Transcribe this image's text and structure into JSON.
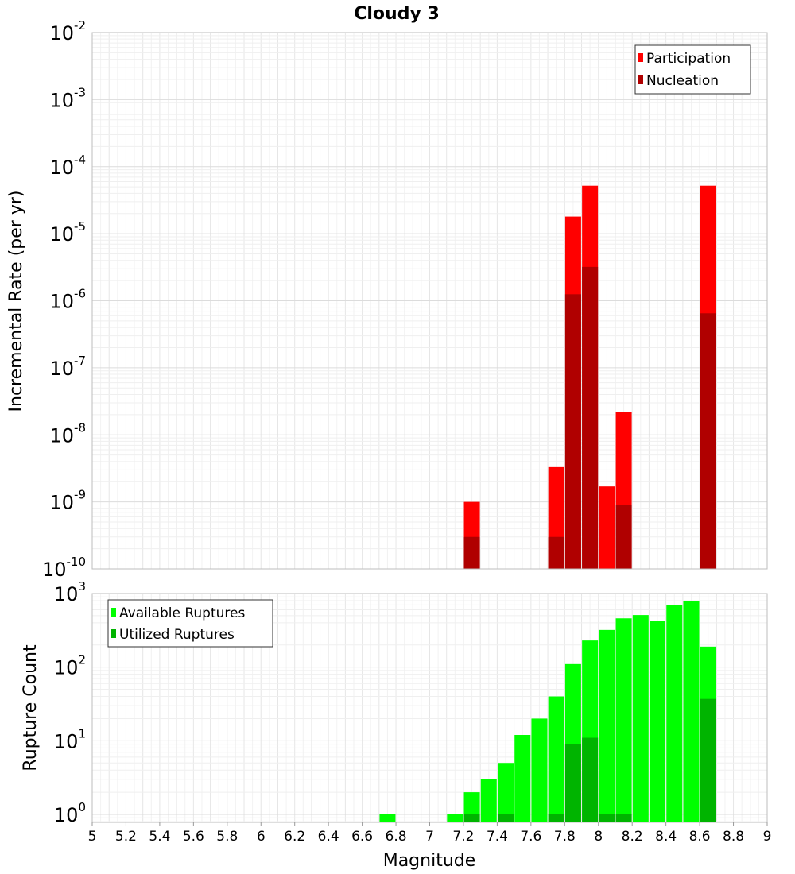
{
  "chart_data": [
    {
      "type": "bar",
      "title": "Cloudy 3",
      "xlabel": "Magnitude",
      "ylabel": "Incremental Rate (per yr)",
      "y_scale": "log",
      "ylim": [
        1e-10,
        0.01
      ],
      "xlim": [
        5,
        9
      ],
      "x_ticks": [
        "5",
        "5.2",
        "5.4",
        "5.6",
        "5.8",
        "6",
        "6.2",
        "6.4",
        "6.6",
        "6.8",
        "7",
        "7.2",
        "7.4",
        "7.6",
        "7.8",
        "8",
        "8.2",
        "8.4",
        "8.6",
        "8.8",
        "9"
      ],
      "y_ticks": [
        {
          "base": "10",
          "exp": "-2",
          "value": 0.01
        },
        {
          "base": "10",
          "exp": "-3",
          "value": 0.001
        },
        {
          "base": "10",
          "exp": "-4",
          "value": 0.0001
        },
        {
          "base": "10",
          "exp": "-5",
          "value": 1e-05
        },
        {
          "base": "10",
          "exp": "-6",
          "value": 1e-06
        },
        {
          "base": "10",
          "exp": "-7",
          "value": 1e-07
        },
        {
          "base": "10",
          "exp": "-8",
          "value": 1e-08
        },
        {
          "base": "10",
          "exp": "-9",
          "value": 1e-09
        },
        {
          "base": "10",
          "exp": "-10",
          "value": 1e-10
        }
      ],
      "grid": true,
      "legend_position": "top-right",
      "series": [
        {
          "name": "Participation",
          "color": "#ff0000",
          "x": [
            7.25,
            7.75,
            7.85,
            7.95,
            8.05,
            8.15,
            8.65
          ],
          "values": [
            1e-09,
            3.3e-09,
            1.8e-05,
            5.2e-05,
            1.7e-09,
            2.2e-08,
            5.2e-05
          ]
        },
        {
          "name": "Nucleation",
          "color": "#b00000",
          "x": [
            7.25,
            7.75,
            7.85,
            7.95,
            8.15,
            8.65
          ],
          "values": [
            3e-10,
            3e-10,
            1.25e-06,
            3.2e-06,
            9e-10,
            6.5e-07
          ]
        }
      ]
    },
    {
      "type": "bar",
      "xlabel": "Magnitude",
      "ylabel": "Rupture Count",
      "y_scale": "log",
      "ylim": [
        0.78,
        1000
      ],
      "xlim": [
        5,
        9
      ],
      "y_ticks": [
        {
          "base": "10",
          "exp": "0",
          "value": 1
        },
        {
          "base": "10",
          "exp": "1",
          "value": 10
        },
        {
          "base": "10",
          "exp": "2",
          "value": 100
        },
        {
          "base": "10",
          "exp": "3",
          "value": 1000
        }
      ],
      "grid": true,
      "legend_position": "top-left",
      "series": [
        {
          "name": "Available Ruptures",
          "color": "#00ff00",
          "x": [
            6.75,
            7.15,
            7.25,
            7.35,
            7.45,
            7.55,
            7.65,
            7.75,
            7.85,
            7.95,
            8.05,
            8.15,
            8.25,
            8.35,
            8.45,
            8.55,
            8.65
          ],
          "values": [
            1,
            1,
            2,
            3,
            5,
            12,
            20,
            40,
            110,
            230,
            320,
            460,
            510,
            420,
            700,
            780,
            190
          ]
        },
        {
          "name": "Utilized Ruptures",
          "color": "#00b400",
          "x": [
            7.25,
            7.45,
            7.75,
            7.85,
            7.95,
            8.05,
            8.15,
            8.65
          ],
          "values": [
            1,
            1,
            1,
            9,
            11,
            1,
            1,
            37
          ]
        }
      ]
    }
  ]
}
